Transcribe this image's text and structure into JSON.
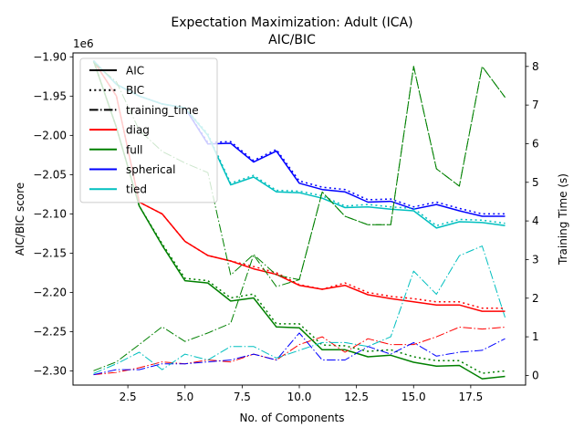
{
  "chart_data": {
    "type": "line",
    "title": "Expectation Maximization: Adult (ICA)",
    "subtitle": "AIC/BIC",
    "xlabel": "No. of Components",
    "ylabel": "AIC/BIC score",
    "y2label": "Training Time (s)",
    "offset_text": "1e6",
    "xlim": [
      0.1,
      19.9
    ],
    "ylim": [
      -2.318,
      -1.895
    ],
    "y2lim": [
      -0.25,
      8.35
    ],
    "grid": false,
    "legend_position": "top-left",
    "x_ticks": [
      2.5,
      5.0,
      7.5,
      10.0,
      12.5,
      15.0,
      17.5
    ],
    "x_tick_labels": [
      "2.5",
      "5.0",
      "7.5",
      "10.0",
      "12.5",
      "15.0",
      "17.5"
    ],
    "y_ticks": [
      -2.3,
      -2.25,
      -2.2,
      -2.15,
      -2.1,
      -2.05,
      -2.0,
      -1.95,
      -1.9
    ],
    "y_tick_labels": [
      "−2.30",
      "−2.25",
      "−2.20",
      "−2.15",
      "−2.10",
      "−2.05",
      "−2.00",
      "−1.95",
      "−1.90"
    ],
    "y2_ticks": [
      0,
      1,
      2,
      3,
      4,
      5,
      6,
      7,
      8
    ],
    "y2_tick_labels": [
      "0",
      "1",
      "2",
      "3",
      "4",
      "5",
      "6",
      "7",
      "8"
    ],
    "legend": [
      {
        "label": "AIC",
        "color": "#000000",
        "style": "solid"
      },
      {
        "label": "BIC",
        "color": "#000000",
        "style": "dotted"
      },
      {
        "label": "training_time",
        "color": "#000000",
        "style": "dashdot"
      },
      {
        "label": "diag",
        "color": "#ff0000",
        "style": "solid"
      },
      {
        "label": "full",
        "color": "#008000",
        "style": "solid"
      },
      {
        "label": "spherical",
        "color": "#0000ff",
        "style": "solid"
      },
      {
        "label": "tied",
        "color": "#00bfbf",
        "style": "solid"
      }
    ],
    "x": [
      1,
      2,
      3,
      4,
      5,
      6,
      7,
      8,
      9,
      10,
      11,
      12,
      13,
      14,
      15,
      16,
      17,
      18,
      19
    ],
    "series": [
      {
        "name": "diag",
        "metric": "AIC",
        "axis": "left",
        "color": "#ff0000",
        "style": "solid",
        "values": [
          -1.905,
          -1.95,
          -2.085,
          -2.1,
          -2.135,
          -2.153,
          -2.16,
          -2.17,
          -2.177,
          -2.191,
          -2.196,
          -2.191,
          -2.203,
          -2.208,
          -2.212,
          -2.216,
          -2.216,
          -2.224,
          -2.224
        ]
      },
      {
        "name": "diag",
        "metric": "BIC",
        "axis": "left",
        "color": "#ff0000",
        "style": "dotted",
        "values": [
          -1.905,
          -1.95,
          -2.085,
          -2.1,
          -2.135,
          -2.153,
          -2.16,
          -2.167,
          -2.175,
          -2.19,
          -2.196,
          -2.188,
          -2.2,
          -2.205,
          -2.208,
          -2.212,
          -2.212,
          -2.22,
          -2.22
        ]
      },
      {
        "name": "full",
        "metric": "AIC",
        "axis": "left",
        "color": "#008000",
        "style": "solid",
        "values": [
          -1.905,
          -1.99,
          -2.09,
          -2.14,
          -2.185,
          -2.188,
          -2.211,
          -2.207,
          -2.244,
          -2.245,
          -2.273,
          -2.273,
          -2.282,
          -2.28,
          -2.289,
          -2.294,
          -2.293,
          -2.31,
          -2.307
        ]
      },
      {
        "name": "full",
        "metric": "BIC",
        "axis": "left",
        "color": "#008000",
        "style": "dotted",
        "values": [
          -1.905,
          -1.99,
          -2.09,
          -2.138,
          -2.182,
          -2.185,
          -2.207,
          -2.202,
          -2.24,
          -2.24,
          -2.267,
          -2.268,
          -2.275,
          -2.273,
          -2.282,
          -2.287,
          -2.287,
          -2.303,
          -2.3
        ]
      },
      {
        "name": "spherical",
        "metric": "AIC",
        "axis": "left",
        "color": "#0000ff",
        "style": "solid",
        "values": [
          -1.905,
          -1.935,
          -1.95,
          -1.96,
          -1.965,
          -2.011,
          -2.01,
          -2.034,
          -2.02,
          -2.061,
          -2.069,
          -2.072,
          -2.085,
          -2.084,
          -2.094,
          -2.088,
          -2.096,
          -2.103,
          -2.103
        ]
      },
      {
        "name": "spherical",
        "metric": "BIC",
        "axis": "left",
        "color": "#0000ff",
        "style": "dotted",
        "values": [
          -1.905,
          -1.935,
          -1.95,
          -1.96,
          -1.965,
          -2.009,
          -2.008,
          -2.032,
          -2.018,
          -2.058,
          -2.066,
          -2.069,
          -2.082,
          -2.081,
          -2.091,
          -2.085,
          -2.093,
          -2.1,
          -2.1
        ]
      },
      {
        "name": "tied",
        "metric": "AIC",
        "axis": "left",
        "color": "#00bfbf",
        "style": "solid",
        "values": [
          -1.905,
          -1.935,
          -1.95,
          -1.96,
          -1.965,
          -2.0,
          -2.063,
          -2.053,
          -2.072,
          -2.073,
          -2.08,
          -2.092,
          -2.091,
          -2.094,
          -2.096,
          -2.118,
          -2.11,
          -2.111,
          -2.115
        ]
      },
      {
        "name": "tied",
        "metric": "BIC",
        "axis": "left",
        "color": "#00bfbf",
        "style": "dotted",
        "values": [
          -1.905,
          -1.935,
          -1.95,
          -1.96,
          -1.965,
          -1.998,
          -2.061,
          -2.051,
          -2.07,
          -2.071,
          -2.077,
          -2.09,
          -2.088,
          -2.091,
          -2.093,
          -2.115,
          -2.107,
          -2.108,
          -2.112
        ]
      },
      {
        "name": "diag",
        "metric": "training_time",
        "axis": "right",
        "color": "#ff0000",
        "style": "dashdot",
        "values": [
          0.02,
          0.08,
          0.2,
          0.35,
          0.3,
          0.4,
          0.35,
          0.55,
          0.4,
          0.8,
          1.0,
          0.6,
          0.95,
          0.8,
          0.8,
          1.0,
          1.25,
          1.2,
          1.25
        ]
      },
      {
        "name": "full",
        "metric": "training_time",
        "axis": "right",
        "color": "#008000",
        "style": "dashdot",
        "values": [
          8.1,
          7.6,
          6.35,
          5.8,
          5.5,
          5.25,
          2.6,
          3.13,
          2.6,
          2.48,
          4.75,
          4.12,
          3.9,
          3.9,
          8.0,
          5.35,
          4.9,
          8.0,
          7.2
        ]
      },
      {
        "name": "spherical",
        "metric": "training_time",
        "axis": "right",
        "color": "#0000ff",
        "style": "dashdot",
        "values": [
          0.02,
          0.15,
          0.15,
          0.3,
          0.3,
          0.35,
          0.4,
          0.55,
          0.4,
          1.1,
          0.4,
          0.4,
          0.75,
          0.55,
          0.85,
          0.5,
          0.6,
          0.65,
          0.95
        ]
      },
      {
        "name": "tied",
        "metric": "training_time",
        "axis": "right",
        "color": "#00bfbf",
        "style": "dashdot",
        "values": [
          0.05,
          0.3,
          0.6,
          0.15,
          0.55,
          0.4,
          0.75,
          0.75,
          0.45,
          0.65,
          0.85,
          0.85,
          0.75,
          1.0,
          2.7,
          2.1,
          3.1,
          3.35,
          1.5
        ]
      },
      {
        "name": "full",
        "metric": "training_time_base",
        "axis": "right",
        "color": "#008000",
        "style": "dashdot",
        "values": [
          0.12,
          0.35,
          0.8,
          1.26,
          0.88,
          1.1,
          1.35,
          3.12,
          2.3,
          2.48,
          4.75,
          4.12,
          3.9,
          3.9,
          8.0,
          5.35,
          4.9,
          8.0,
          7.2
        ]
      }
    ]
  }
}
